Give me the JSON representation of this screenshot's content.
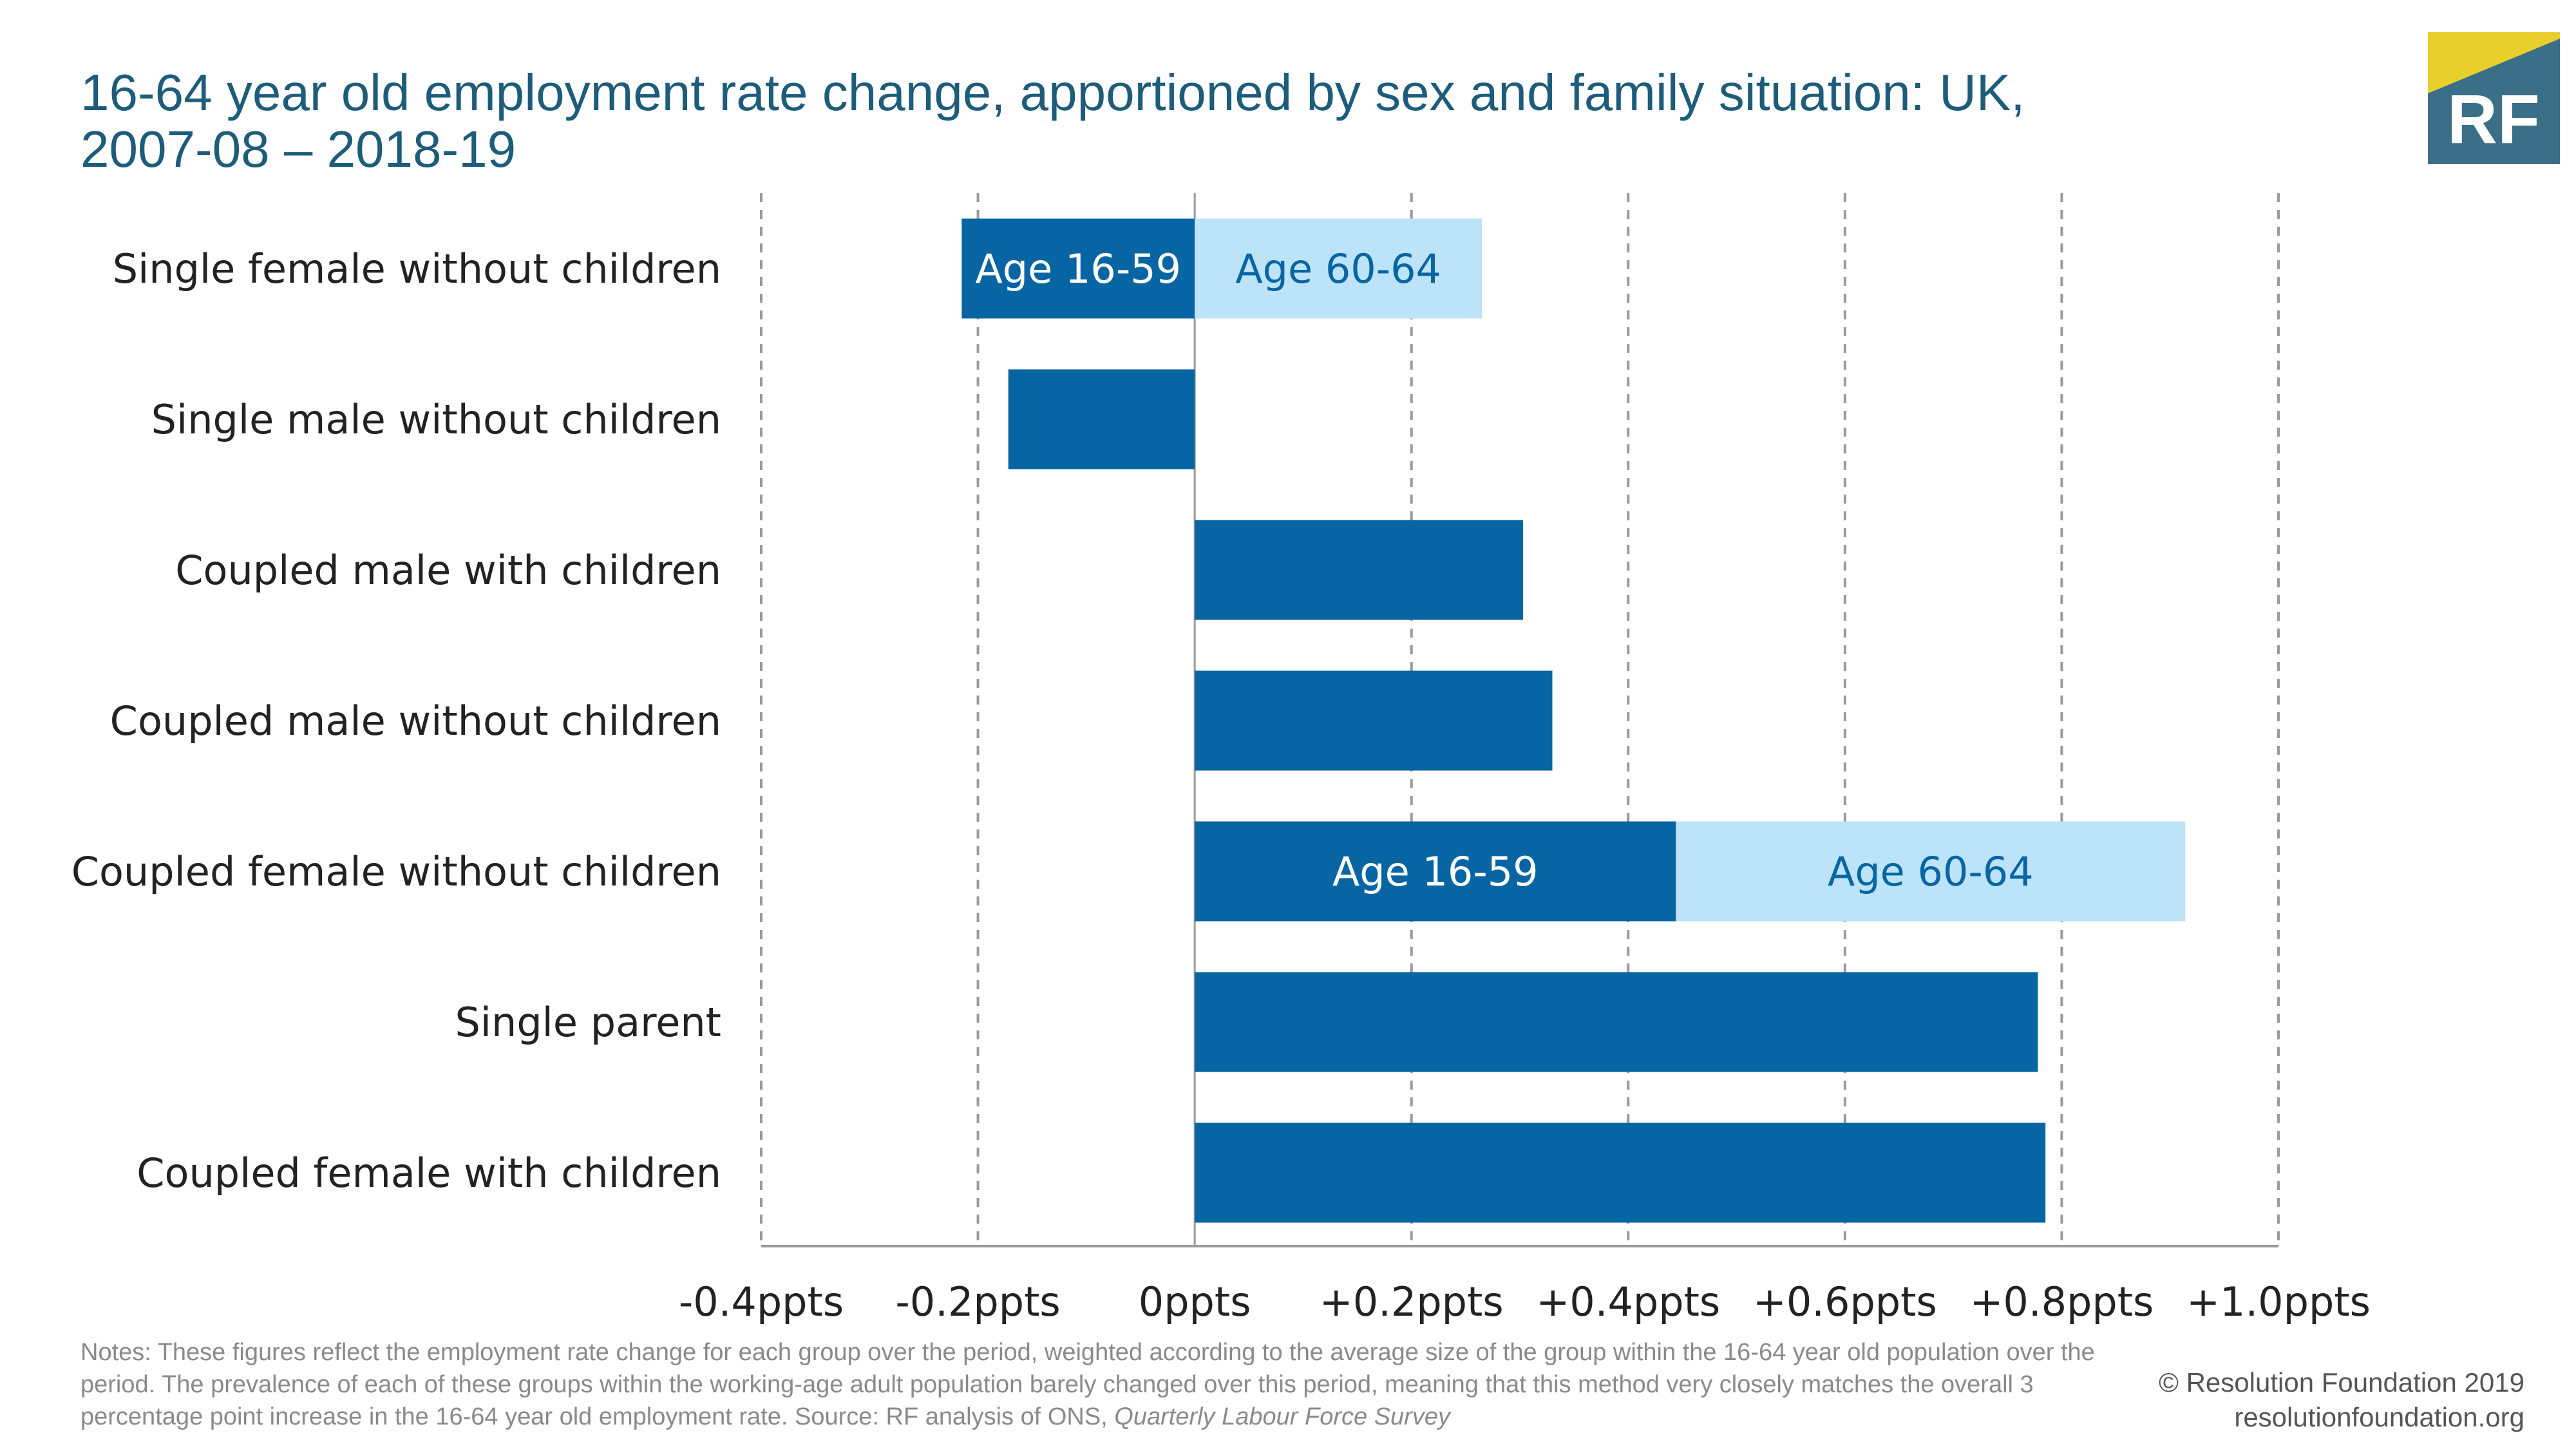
{
  "title": {
    "line1": "16-64 year old employment rate change, apportioned by sex and family situation: UK,",
    "line2": "2007-08 – 2018-19"
  },
  "logo": {
    "text": "RF",
    "colors": {
      "bg": "#3b6e87",
      "accent": "#e8cf2c",
      "text": "#ffffff"
    }
  },
  "chart_data": {
    "type": "bar",
    "orientation": "horizontal",
    "stacked": true,
    "title": "16-64 year old employment rate change, apportioned by sex and family situation: UK, 2007-08 – 2018-19",
    "xlabel": "",
    "ylabel": "",
    "xlim": [
      -0.4,
      1.0
    ],
    "xticks": [
      -0.4,
      -0.2,
      0,
      0.2,
      0.4,
      0.6,
      0.8,
      1.0
    ],
    "tick_labels": [
      "-0.4ppts",
      "-0.2ppts",
      "0ppts",
      "+0.2ppts",
      "+0.4ppts",
      "+0.6ppts",
      "+0.8ppts",
      "+1.0ppts"
    ],
    "grid": "vertical dashed",
    "legend": "none",
    "categories": [
      "Single female without children",
      "Single male without children",
      "Coupled male with children",
      "Coupled male without children",
      "Coupled female without children",
      "Single parent",
      "Coupled female with children"
    ],
    "series": [
      {
        "name": "Age 16-59",
        "color": "#0765a3",
        "label_color": "#ffffff",
        "values": [
          -0.215,
          -0.172,
          0.303,
          0.33,
          0.444,
          0.778,
          0.785
        ]
      },
      {
        "name": "Age 60-64",
        "color": "#bde3f8",
        "label_color": "#0765a3",
        "values": [
          0.265,
          0,
          0,
          0,
          0.47,
          0,
          0
        ]
      }
    ],
    "segment_labels": [
      {
        "category": 0,
        "series": 0,
        "text": "Age 16-59"
      },
      {
        "category": 0,
        "series": 1,
        "text": "Age 60-64"
      },
      {
        "category": 4,
        "series": 0,
        "text": "Age 16-59"
      },
      {
        "category": 4,
        "series": 1,
        "text": "Age 60-64"
      }
    ]
  },
  "notes": {
    "text": "Notes: These figures reflect the employment rate change for each group over the period, weighted according to the average size of the group within the 16-64 year old population over the period. The prevalence of each of these groups within the working-age adult population barely changed over this period, meaning that this method very closely matches the overall 3 percentage point increase in the 16-64 year old employment rate. Source: RF analysis of ONS, ",
    "source_italic": "Quarterly Labour Force Survey"
  },
  "credit": {
    "line1": "© Resolution Foundation 2019",
    "line2": "resolutionfoundation.org"
  }
}
